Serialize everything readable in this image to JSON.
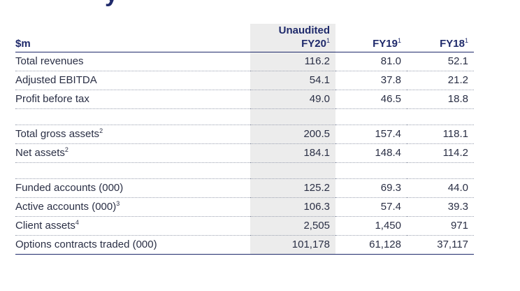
{
  "title_fragment": "y",
  "header": {
    "unit": "$m",
    "col_fy20_line1": "Unaudited",
    "col_fy20": "FY20",
    "col_fy20_sup": "1",
    "col_fy19": "FY19",
    "col_fy19_sup": "1",
    "col_fy18": "FY18",
    "col_fy18_sup": "1"
  },
  "groups": [
    {
      "rows": [
        {
          "label": "Total revenues",
          "sup": "",
          "fy20": "116.2",
          "fy19": "81.0",
          "fy18": "52.1"
        },
        {
          "label": "Adjusted EBITDA",
          "sup": "",
          "fy20": "54.1",
          "fy19": "37.8",
          "fy18": "21.2"
        },
        {
          "label": "Profit before tax",
          "sup": "",
          "fy20": "49.0",
          "fy19": "46.5",
          "fy18": "18.8"
        }
      ]
    },
    {
      "rows": [
        {
          "label": "Total gross assets",
          "sup": "2",
          "fy20": "200.5",
          "fy19": "157.4",
          "fy18": "118.1"
        },
        {
          "label": "Net assets",
          "sup": "2",
          "fy20": "184.1",
          "fy19": "148.4",
          "fy18": "114.2"
        }
      ]
    },
    {
      "rows": [
        {
          "label": "Funded accounts (000)",
          "sup": "",
          "fy20": "125.2",
          "fy19": "69.3",
          "fy18": "44.0"
        },
        {
          "label": "Active accounts (000)",
          "sup": "3",
          "fy20": "106.3",
          "fy19": "57.4",
          "fy18": "39.3"
        },
        {
          "label": "Client assets",
          "sup": "4",
          "fy20": "2,505",
          "fy19": "1,450",
          "fy18": "971"
        },
        {
          "label": "Options contracts traded (000)",
          "sup": "",
          "fy20": "101,178",
          "fy19": "61,128",
          "fy18": "37,117"
        }
      ]
    }
  ]
}
